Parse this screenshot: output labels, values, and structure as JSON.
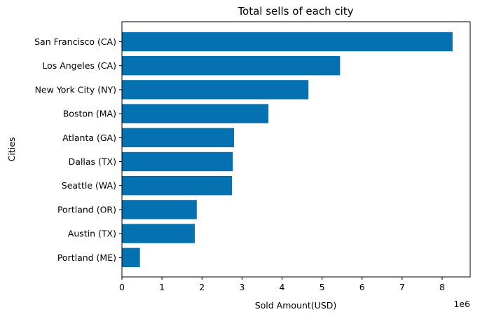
{
  "chart_data": {
    "type": "bar",
    "orientation": "horizontal",
    "title": "Total sells of each city",
    "xlabel": "Sold Amount(USD)",
    "ylabel": "Cities",
    "x_scale_label": "1e6",
    "xlim": [
      0,
      8.7
    ],
    "xticks": [
      "0",
      "1",
      "2",
      "3",
      "4",
      "5",
      "6",
      "7",
      "8"
    ],
    "bar_color": "#0571b0",
    "grid": false,
    "legend": "none",
    "categories": [
      "San Francisco (CA)",
      "Los Angeles (CA)",
      "New York City (NY)",
      "Boston (MA)",
      "Atlanta (GA)",
      "Dallas (TX)",
      "Seattle (WA)",
      "Portland (OR)",
      "Austin (TX)",
      "Portland (ME)"
    ],
    "values": [
      8.26,
      5.45,
      4.66,
      3.66,
      2.8,
      2.77,
      2.75,
      1.87,
      1.82,
      0.45
    ]
  }
}
